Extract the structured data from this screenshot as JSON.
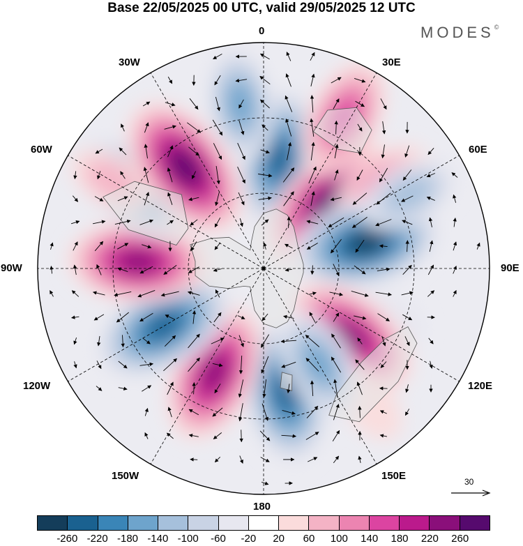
{
  "title": "Base 22/05/2025 00 UTC, valid 29/05/2025 12 UTC",
  "brand": "MODES",
  "brand_mark": "©",
  "longitude_labels": {
    "lon_0": "0",
    "lon_30e": "30E",
    "lon_60e": "60E",
    "lon_90e": "90E",
    "lon_120e": "120E",
    "lon_150e": "150E",
    "lon_180": "180",
    "lon_150w": "150W",
    "lon_120w": "120W",
    "lon_90w": "90W",
    "lon_60w": "60W",
    "lon_30w": "30W"
  },
  "vector_scale": "30",
  "colorbar": {
    "colors": [
      "#143d5a",
      "#1a6190",
      "#3a85b7",
      "#6ea4cc",
      "#a6c0dc",
      "#c9d3e5",
      "#e7e7f0",
      "#ffffff",
      "#fbdcdc",
      "#f4b3c5",
      "#ec84b1",
      "#dc44a1",
      "#bb1a8c",
      "#8a0f7a",
      "#560a6e"
    ],
    "ticks": [
      "-260",
      "-220",
      "-180",
      "-140",
      "-100",
      "-60",
      "-20",
      "20",
      "60",
      "100",
      "140",
      "180",
      "220",
      "260"
    ]
  },
  "anomalies": [
    {
      "lon": 8,
      "colat": 44,
      "value": -230
    },
    {
      "lon": 352,
      "colat": 66,
      "value": -150
    },
    {
      "lon": 45,
      "colat": 37,
      "value": 260
    },
    {
      "lon": 28,
      "colat": 68,
      "value": 170
    },
    {
      "lon": 55,
      "colat": 58,
      "value": 120
    },
    {
      "lon": 76,
      "colat": 42,
      "value": -260
    },
    {
      "lon": 63,
      "colat": 65,
      "value": -110
    },
    {
      "lon": 112,
      "colat": 52,
      "value": -50
    },
    {
      "lon": 128,
      "colat": 44,
      "value": 230
    },
    {
      "lon": 142,
      "colat": 68,
      "value": 50
    },
    {
      "lon": 170,
      "colat": 50,
      "value": -240
    },
    {
      "lon": 150,
      "colat": 44,
      "value": -150
    },
    {
      "lon": 205,
      "colat": 46,
      "value": 230
    },
    {
      "lon": 240,
      "colat": 46,
      "value": -250
    },
    {
      "lon": 273,
      "colat": 50,
      "value": 230
    },
    {
      "lon": 302,
      "colat": 61,
      "value": -210
    },
    {
      "lon": 322,
      "colat": 51,
      "value": 260
    },
    {
      "lon": 300,
      "colat": 70,
      "value": 60
    }
  ]
}
